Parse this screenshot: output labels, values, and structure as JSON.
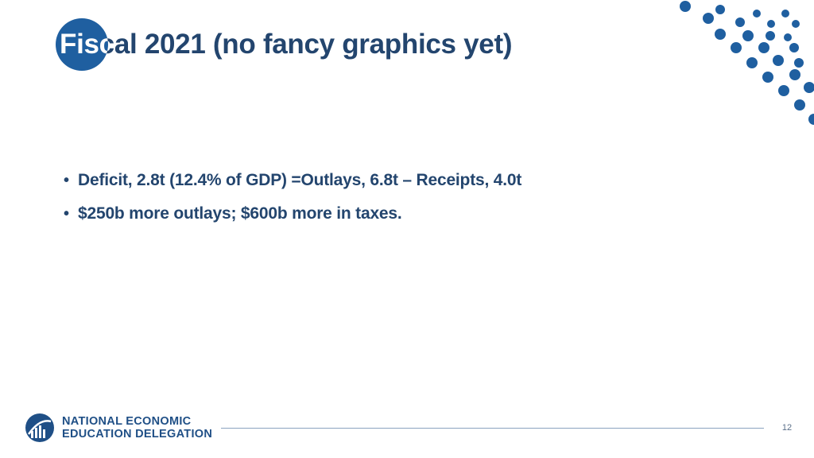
{
  "slide": {
    "title": "Fiscal 2021 (no fancy graphics yet)",
    "bullets": [
      "Deficit, 2.8t (12.4% of GDP) =Outlays, 6.8t – Receipts, 4.0t",
      "$250b more outlays; $600b more in taxes."
    ],
    "bullet_symbol": "•",
    "page_number": "12"
  },
  "logo": {
    "line1": "NATIONAL ECONOMIC",
    "line2": "EDUCATION DELEGATION",
    "icon": "globe-icon"
  },
  "colors": {
    "title": "#23456e",
    "accent": "#1f5fa0",
    "body_text": "#23456e",
    "footer_line": "#8aa3c0"
  }
}
